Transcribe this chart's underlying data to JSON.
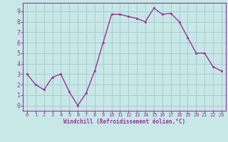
{
  "x": [
    0,
    1,
    2,
    3,
    4,
    5,
    6,
    7,
    8,
    9,
    10,
    11,
    12,
    13,
    14,
    15,
    16,
    17,
    18,
    19,
    20,
    21,
    22,
    23
  ],
  "y": [
    3.0,
    2.0,
    1.5,
    2.7,
    3.0,
    1.3,
    0.0,
    1.2,
    3.3,
    6.0,
    8.7,
    8.7,
    8.5,
    8.3,
    8.0,
    9.3,
    8.7,
    8.8,
    8.0,
    6.5,
    5.0,
    5.0,
    3.7,
    3.3
  ],
  "line_color": "#993399",
  "marker_color": "#993399",
  "bg_color": "#c8e8e8",
  "grid_color": "#aacccc",
  "axis_color": "#993399",
  "tick_color": "#993399",
  "xlabel": "Windchill (Refroidissement éolien,°C)",
  "xlim": [
    -0.5,
    23.5
  ],
  "ylim": [
    -0.5,
    9.8
  ],
  "xticks": [
    0,
    1,
    2,
    3,
    4,
    5,
    6,
    7,
    8,
    9,
    10,
    11,
    12,
    13,
    14,
    15,
    16,
    17,
    18,
    19,
    20,
    21,
    22,
    23
  ],
  "yticks": [
    0,
    1,
    2,
    3,
    4,
    5,
    6,
    7,
    8,
    9
  ]
}
